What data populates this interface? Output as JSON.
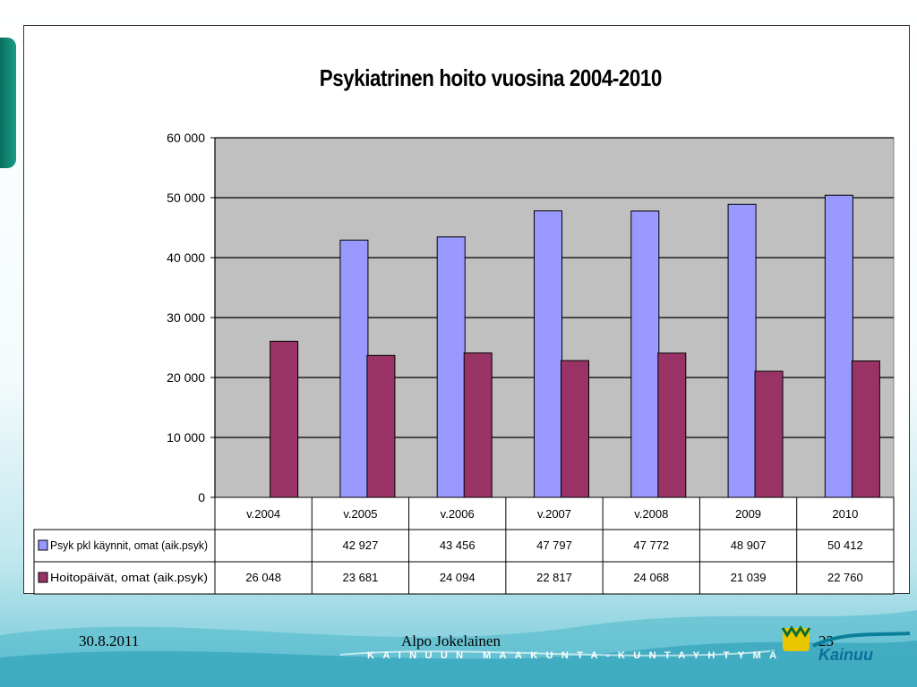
{
  "slide": {
    "date": "30.8.2011",
    "author": "Alpo Jokelainen",
    "page_number": "23",
    "brand_strip": "KAINUUN MAAKUNTA-KUNTAYHTYMÄ",
    "logo_text": "Kainuu"
  },
  "colors": {
    "series1": "#9999ff",
    "series2": "#993366",
    "plot_bg": "#c0c0c0"
  },
  "chart_data": {
    "type": "bar",
    "title": "Psykiatrinen hoito vuosina 2004-2010",
    "categories": [
      "v.2004",
      "v.2005",
      "v.2006",
      "v.2007",
      "v.2008",
      "2009",
      "2010"
    ],
    "series": [
      {
        "name": "Psyk pkl käynnit, omat (aik.psyk)",
        "values": [
          null,
          42927,
          43456,
          47797,
          47772,
          48907,
          50412
        ],
        "labels": [
          "",
          "42 927",
          "43 456",
          "47 797",
          "47 772",
          "48 907",
          "50 412"
        ]
      },
      {
        "name": "Hoitopäivät, omat (aik.psyk)",
        "values": [
          26048,
          23681,
          24094,
          22817,
          24068,
          21039,
          22760
        ],
        "labels": [
          "26 048",
          "23 681",
          "24 094",
          "22 817",
          "24 068",
          "21 039",
          "22 760"
        ]
      }
    ],
    "ylim": [
      0,
      60000
    ],
    "yticks": [
      0,
      10000,
      20000,
      30000,
      40000,
      50000,
      60000
    ],
    "ytick_labels": [
      "0",
      "10 000",
      "20 000",
      "30 000",
      "40 000",
      "50 000",
      "60 000"
    ],
    "grid": true,
    "legend": "data-table"
  }
}
